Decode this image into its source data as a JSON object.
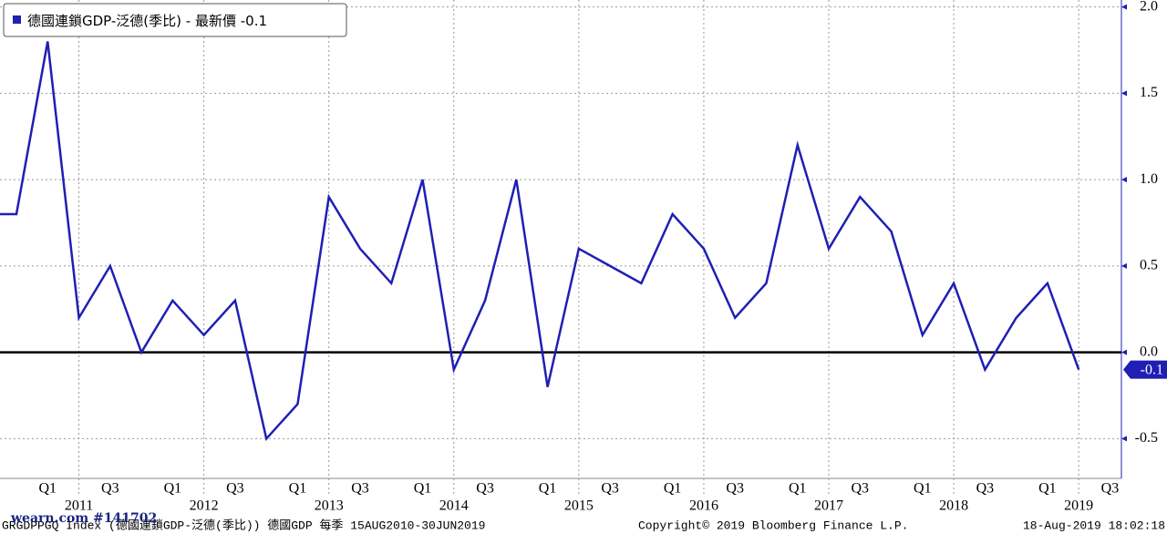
{
  "chart_data": {
    "type": "line",
    "series": [
      {
        "name": "德國連鎖GDP-泛德(季比)",
        "color": "#1f1fb4",
        "values": [
          0.8,
          0.8,
          1.8,
          0.2,
          0.5,
          0.0,
          0.3,
          0.1,
          0.3,
          -0.5,
          -0.3,
          0.9,
          0.6,
          0.4,
          1.0,
          -0.1,
          0.3,
          1.0,
          -0.2,
          0.6,
          0.5,
          0.4,
          0.8,
          0.6,
          0.2,
          0.4,
          1.2,
          0.6,
          0.9,
          0.7,
          0.1,
          0.4,
          -0.1,
          0.2,
          0.4,
          -0.1,
          null
        ]
      }
    ],
    "categories": [
      null,
      null,
      "Q1",
      null,
      "Q3",
      null,
      "Q1",
      null,
      "Q3",
      null,
      "Q1",
      null,
      "Q3",
      null,
      "Q1",
      null,
      "Q3",
      null,
      "Q1",
      null,
      "Q3",
      null,
      "Q1",
      null,
      "Q3",
      null,
      "Q1",
      null,
      "Q3",
      null,
      "Q1",
      null,
      "Q3",
      null,
      "Q1",
      null,
      "Q3"
    ],
    "years": [
      "2011",
      "2012",
      "2013",
      "2014",
      "2015",
      "2016",
      "2017",
      "2018",
      "2019"
    ],
    "legend_suffix": "- 最新價",
    "last_value": -0.1,
    "ylim": [
      -0.73,
      2.04
    ],
    "yticks": [
      {
        "value": 2.0,
        "label": "2.0"
      },
      1.5,
      {
        "value": 1.0,
        "label": "1.0"
      },
      0.5,
      {
        "value": 0.0,
        "label": "0.0"
      },
      -0.5
    ],
    "grid": true,
    "footer": {
      "source": "GRGDPPGQ Index (德國連鎖GDP-泛德(季比)) 德國GDP  每季 15AUG2010-30JUN2019",
      "copyright": "Copyright© 2019 Bloomberg Finance L.P.",
      "timestamp": "18-Aug-2019 18:02:18",
      "watermark": "wearn.com #141702"
    }
  }
}
